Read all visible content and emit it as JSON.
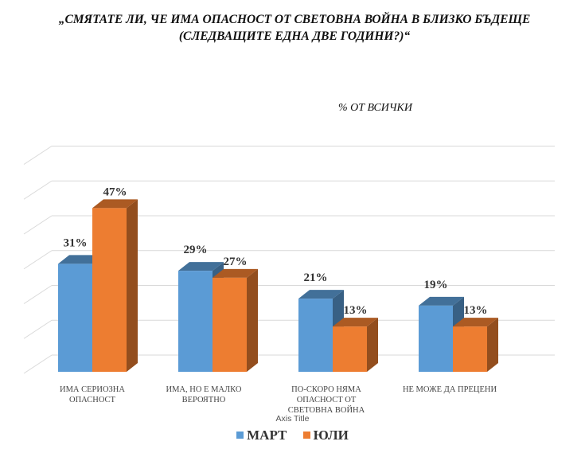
{
  "chart_data": {
    "type": "bar",
    "title": "„СМЯТАТЕ ЛИ, ЧЕ ИМА ОПАСНОСТ ОТ СВЕТОВНА ВОЙНА В БЛИЗКО БЪДЕЩЕ (СЛЕДВАЩИТЕ ЕДНА ДВЕ ГОДИНИ?)“",
    "subtitle": "% ОТ ВСИЧКИ",
    "xlabel": "Axis Title",
    "categories": [
      "ИМА СЕРИОЗНА ОПАСНОСТ",
      "ИМА, НО Е МАЛКО ВЕРОЯТНО",
      "ПО-СКОРО НЯМА ОПАСНОСТ ОТ СВЕТОВНА ВОЙНА",
      "НЕ МОЖЕ ДА ПРЕЦЕНИ"
    ],
    "series": [
      {
        "name": "МАРТ",
        "color": "#5B9BD5",
        "values": [
          31,
          29,
          21,
          19
        ],
        "labels": [
          "31%",
          "29%",
          "21%",
          "19%"
        ]
      },
      {
        "name": "ЮЛИ",
        "color": "#ED7D31",
        "values": [
          47,
          27,
          13,
          13
        ],
        "labels": [
          "47%",
          "27%",
          "13%",
          "13%"
        ]
      }
    ],
    "ylim": [
      0,
      60
    ],
    "grid": true,
    "legend": "bottom"
  }
}
